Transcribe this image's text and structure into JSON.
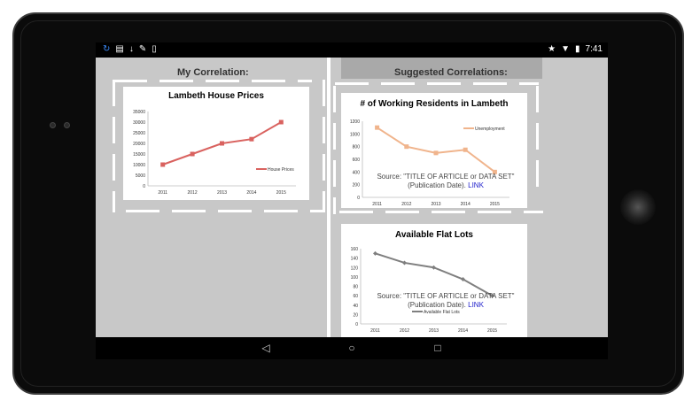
{
  "status_bar": {
    "left_icons": [
      "sync-icon",
      "android-icon",
      "download-icon",
      "twitter-icon",
      "phone-icon"
    ],
    "right_icons": [
      "star-icon",
      "wifi-icon",
      "battery-icon"
    ],
    "time": "7:41"
  },
  "left_panel": {
    "heading": "My Correlation:"
  },
  "right_panel": {
    "heading": "Suggested Correlations:"
  },
  "source_text": {
    "line1": "Source: \"TITLE OF ARTICLE or DATA SET\"",
    "line2": "(Publication Date).",
    "link": "LINK"
  },
  "chart_data": [
    {
      "type": "line",
      "title": "Lambeth House Prices",
      "x": [
        "2011",
        "2012",
        "2013",
        "2014",
        "2015"
      ],
      "series": [
        {
          "name": "House Prices",
          "values": [
            10000,
            15000,
            20000,
            22000,
            30000
          ],
          "color": "#d9625f"
        }
      ],
      "yticks": [
        "0",
        "5000",
        "10000",
        "15000",
        "20000",
        "25000",
        "30000",
        "35000"
      ],
      "ylim": [
        0,
        35000
      ],
      "legend": "right"
    },
    {
      "type": "line",
      "title": "# of Working Residents in Lambeth",
      "x": [
        "2011",
        "2012",
        "2013",
        "2014",
        "2015"
      ],
      "series": [
        {
          "name": "Unemployment",
          "values": [
            1100,
            800,
            700,
            750,
            400
          ],
          "color": "#f0b48c"
        }
      ],
      "yticks": [
        "0",
        "200",
        "400",
        "600",
        "800",
        "1000",
        "1200"
      ],
      "ylim": [
        0,
        1200
      ],
      "legend": "top-right"
    },
    {
      "type": "line",
      "title": "Available Flat Lots",
      "x": [
        "2011",
        "2012",
        "2013",
        "2014",
        "2015"
      ],
      "series": [
        {
          "name": "Available Flat Lots",
          "values": [
            150,
            130,
            120,
            95,
            60
          ],
          "color": "#7f7f7f"
        }
      ],
      "yticks": [
        "0",
        "20",
        "40",
        "60",
        "80",
        "100",
        "120",
        "140",
        "160"
      ],
      "ylim": [
        0,
        160
      ],
      "legend": "bottom"
    }
  ],
  "nav_bar": {
    "back": "◁",
    "home": "○",
    "recents": "□"
  }
}
